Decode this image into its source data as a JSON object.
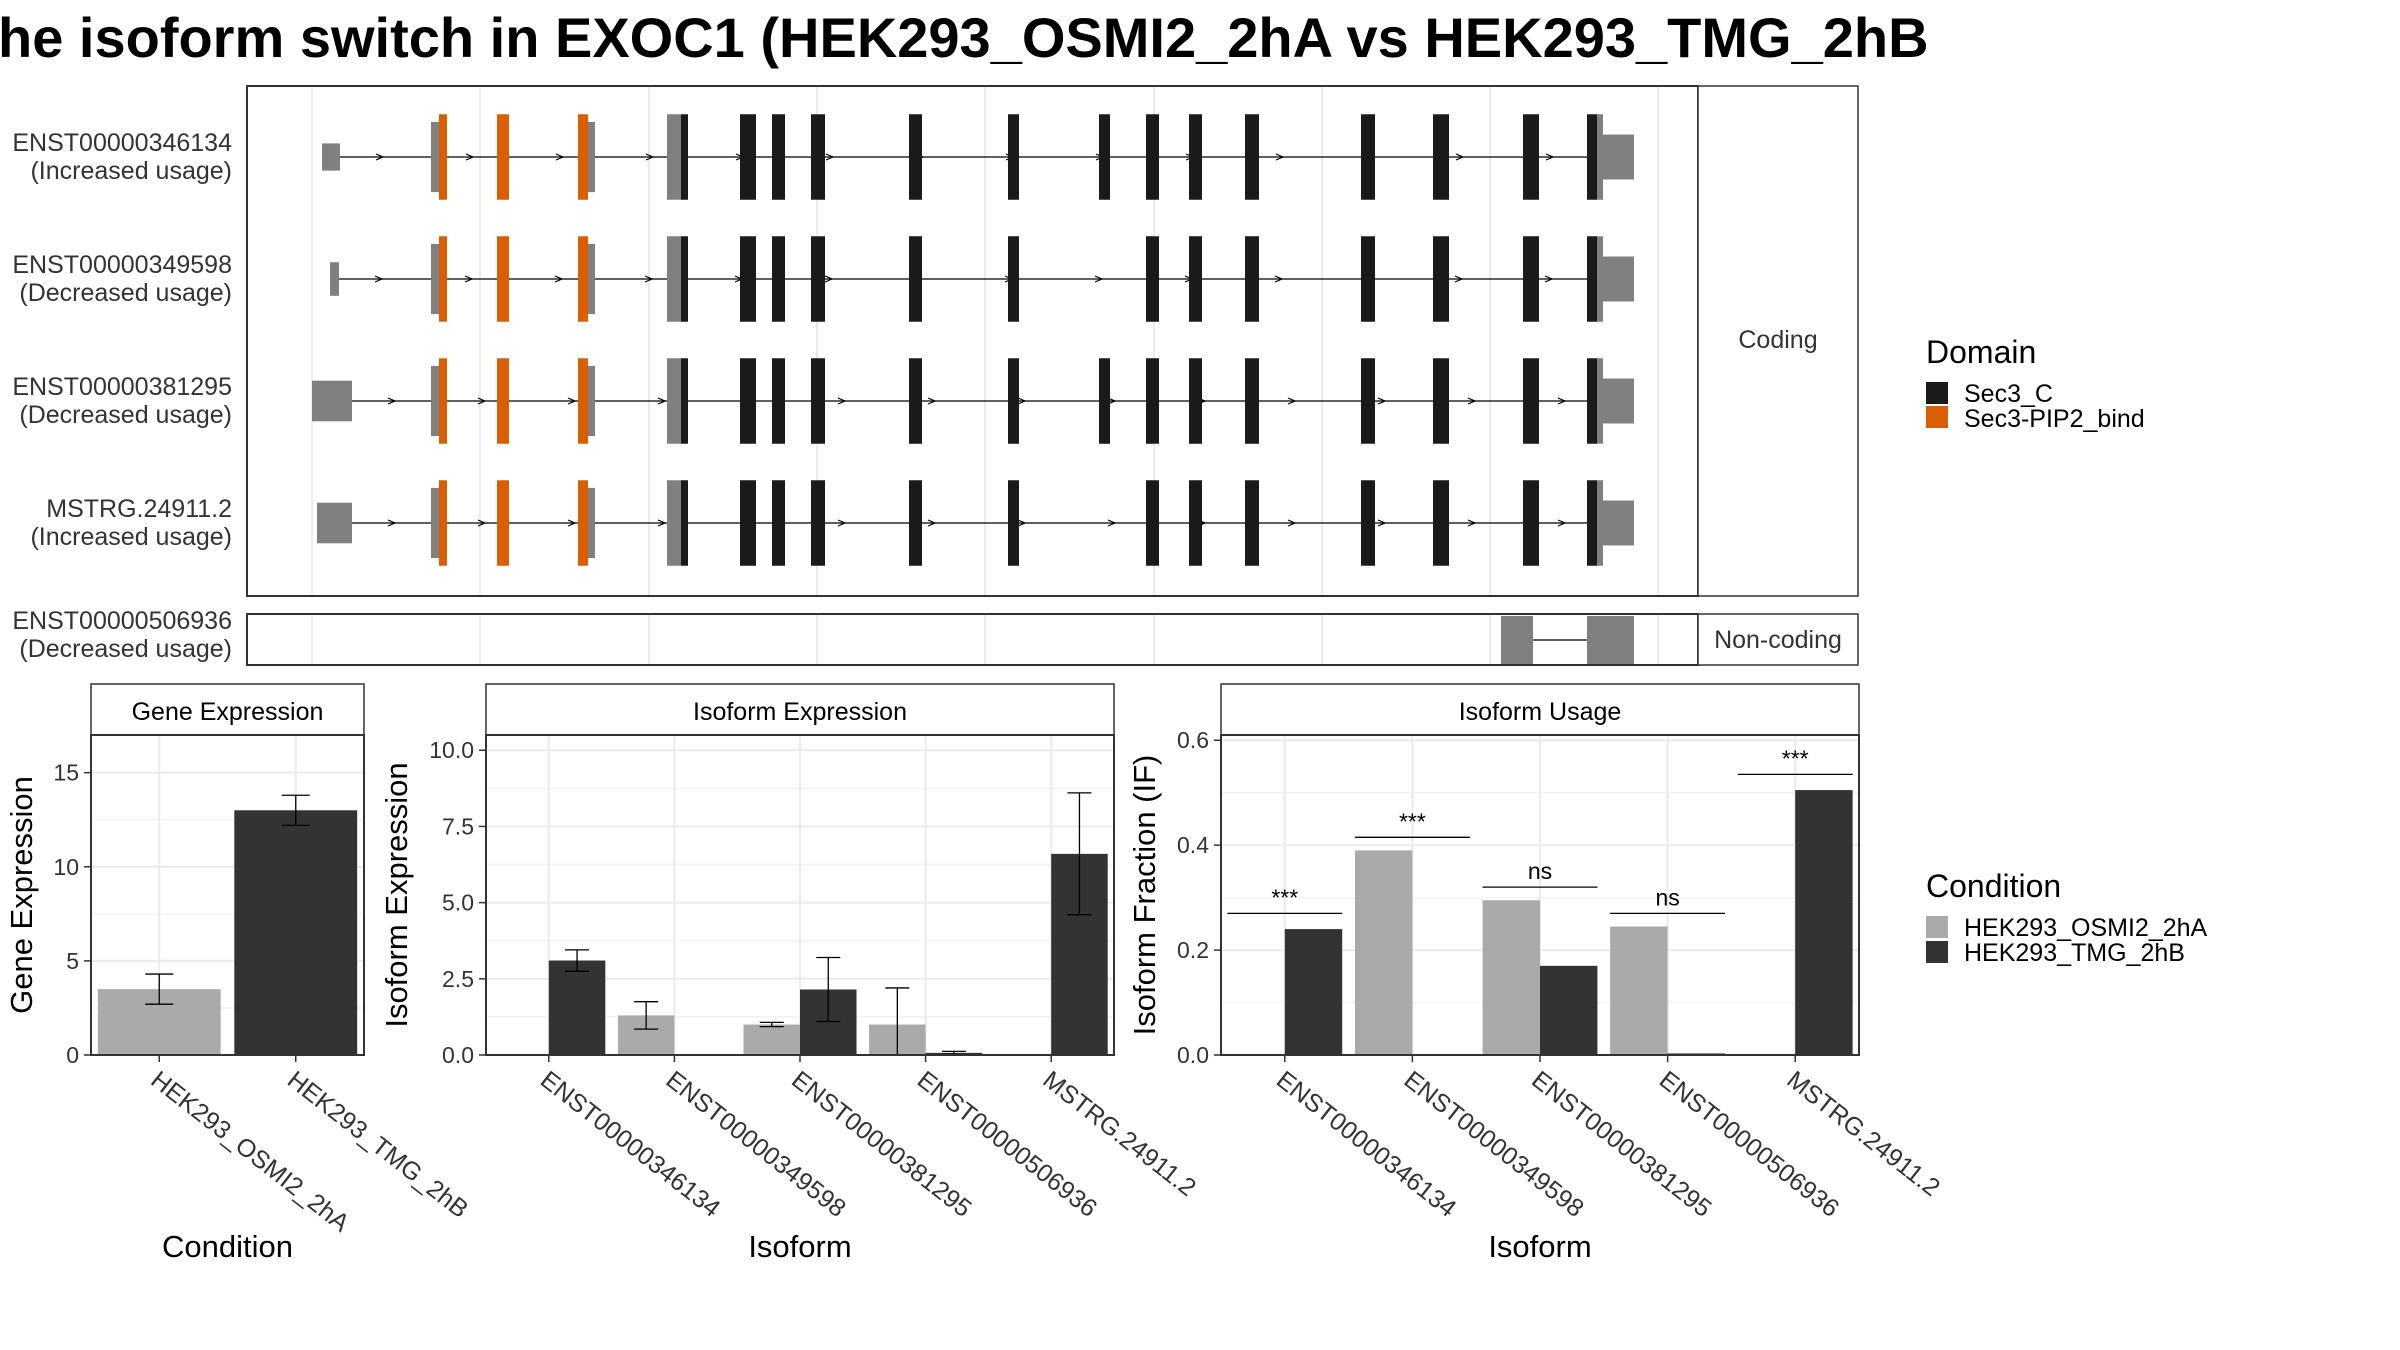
{
  "title": "he isoform switch in EXOC1 (HEK293_OSMI2_2hA vs HEK293_TMG_2hB",
  "colors": {
    "utr": "#808080",
    "sec3c": "#1a1a1a",
    "pip2": "#d95f02",
    "cond1": "#aaaaaa",
    "cond2": "#333333",
    "panel_border": "#333333",
    "strip_fill": "#ffffff",
    "grid": "#ebebeb"
  },
  "structure_panel": {
    "coding_label": "Coding",
    "noncoding_label": "Non-coding",
    "transcripts": [
      {
        "id": "ENST00000346134",
        "usage": "(Increased usage)",
        "type": "coding",
        "variant": "full"
      },
      {
        "id": "ENST00000349598",
        "usage": "(Decreased usage)",
        "type": "coding",
        "variant": "skip_exon_9"
      },
      {
        "id": "ENST00000381295",
        "usage": "(Decreased usage)",
        "type": "coding",
        "variant": "full"
      },
      {
        "id": "MSTRG.24911.2",
        "usage": "(Increased usage)",
        "type": "coding",
        "variant": "skip_exon_9"
      },
      {
        "id": "ENST00000506936",
        "usage": "(Decreased usage)",
        "type": "noncoding",
        "variant": "fragment"
      }
    ]
  },
  "legends": {
    "domain": {
      "title": "Domain",
      "items": [
        {
          "label": "Sec3_C",
          "color": "#1a1a1a"
        },
        {
          "label": "Sec3-PIP2_bind",
          "color": "#d95f02"
        }
      ]
    },
    "condition": {
      "title": "Condition",
      "items": [
        {
          "label": "HEK293_OSMI2_2hA",
          "color": "#aaaaaa"
        },
        {
          "label": "HEK293_TMG_2hB",
          "color": "#333333"
        }
      ]
    }
  },
  "chart_data": [
    {
      "type": "bar",
      "title": "Gene Expression",
      "xlabel": "Condition",
      "ylabel": "Gene Expression",
      "ylim": [
        0,
        17
      ],
      "yticks": [
        "0",
        "5",
        "10",
        "15"
      ],
      "categories": [
        "HEK293_OSMI2_2hA",
        "HEK293_TMG_2hB"
      ],
      "values": [
        3.5,
        13.0
      ],
      "error": [
        [
          2.7,
          4.3
        ],
        [
          12.2,
          13.8
        ]
      ]
    },
    {
      "type": "bar",
      "title": "Isoform Expression",
      "xlabel": "Isoform",
      "ylabel": "Isoform Expression",
      "ylim": [
        0,
        10.5
      ],
      "yticks": [
        "0.0",
        "2.5",
        "5.0",
        "7.5",
        "10.0"
      ],
      "categories": [
        "ENST00000346134",
        "ENST00000349598",
        "ENST00000381295",
        "ENST00000506936",
        "MSTRG.24911.2"
      ],
      "series": [
        {
          "name": "HEK293_OSMI2_2hA",
          "values": [
            0,
            1.3,
            1.0,
            1.0,
            0
          ],
          "error": [
            [
              0,
              0
            ],
            [
              0.85,
              1.75
            ],
            [
              0.93,
              1.07
            ],
            [
              0,
              2.2
            ],
            [
              0,
              0
            ]
          ]
        },
        {
          "name": "HEK293_TMG_2hB",
          "values": [
            3.1,
            0,
            2.15,
            0.07,
            6.6
          ],
          "error": [
            [
              2.75,
              3.45
            ],
            [
              0,
              0
            ],
            [
              1.1,
              3.2
            ],
            [
              0.02,
              0.12
            ],
            [
              4.6,
              8.6
            ]
          ]
        }
      ]
    },
    {
      "type": "bar",
      "title": "Isoform Usage",
      "xlabel": "Isoform",
      "ylabel": "Isoform Fraction (IF)",
      "ylim": [
        0,
        0.61
      ],
      "yticks": [
        "0.0",
        "0.2",
        "0.4",
        "0.6"
      ],
      "categories": [
        "ENST00000346134",
        "ENST00000349598",
        "ENST00000381295",
        "ENST00000506936",
        "MSTRG.24911.2"
      ],
      "series": [
        {
          "name": "HEK293_OSMI2_2hA",
          "values": [
            0,
            0.39,
            0.295,
            0.245,
            0
          ]
        },
        {
          "name": "HEK293_TMG_2hB",
          "values": [
            0.24,
            0,
            0.17,
            0.003,
            0.505
          ]
        }
      ],
      "significance": [
        {
          "label": "***",
          "y": 0.27
        },
        {
          "label": "***",
          "y": 0.415
        },
        {
          "label": "ns",
          "y": 0.32
        },
        {
          "label": "ns",
          "y": 0.27
        },
        {
          "label": "***",
          "y": 0.535
        }
      ]
    }
  ]
}
